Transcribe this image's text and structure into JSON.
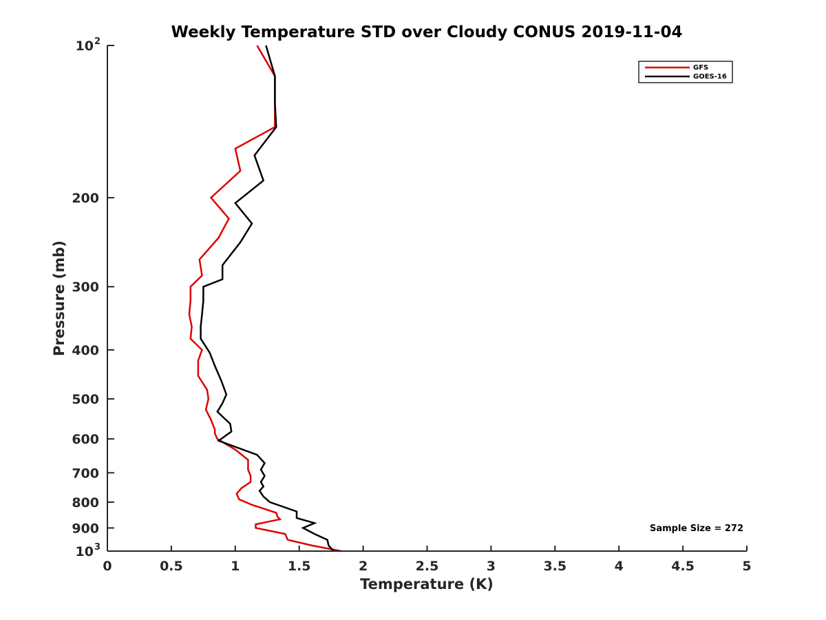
{
  "chart_data": {
    "type": "line",
    "title": "Weekly Temperature STD over Cloudy CONUS 2019-11-04",
    "xlabel": "Temperature (K)",
    "ylabel": "Pressure (mb)",
    "xlim": [
      0,
      5
    ],
    "ylim": [
      100,
      1000
    ],
    "y_scale": "log",
    "y_reversed": true,
    "grid": false,
    "legend_position": "top-right",
    "x_ticks": [
      0,
      0.5,
      1,
      1.5,
      2,
      2.5,
      3,
      3.5,
      4,
      4.5,
      5
    ],
    "x_tick_labels": [
      "0",
      "0.5",
      "1",
      "1.5",
      "2",
      "2.5",
      "3",
      "3.5",
      "4",
      "4.5",
      "5"
    ],
    "y_ticks": [
      {
        "value": 100,
        "base": "10",
        "exp": "2"
      },
      {
        "value": 200,
        "label": "200"
      },
      {
        "value": 300,
        "label": "300"
      },
      {
        "value": 400,
        "label": "400"
      },
      {
        "value": 500,
        "label": "500"
      },
      {
        "value": 600,
        "label": "600"
      },
      {
        "value": 700,
        "label": "700"
      },
      {
        "value": 800,
        "label": "800"
      },
      {
        "value": 900,
        "label": "900"
      },
      {
        "value": 1000,
        "base": "10",
        "exp": "3"
      }
    ],
    "annotation": "Sample Size = 272",
    "series": [
      {
        "name": "GFS",
        "color": "#dd0000",
        "points": [
          [
            1.17,
            100
          ],
          [
            1.31,
            115
          ],
          [
            1.31,
            130
          ],
          [
            1.31,
            145
          ],
          [
            1.0,
            160
          ],
          [
            1.04,
            177
          ],
          [
            0.81,
            200
          ],
          [
            0.95,
            220
          ],
          [
            0.87,
            240
          ],
          [
            0.72,
            265
          ],
          [
            0.74,
            285
          ],
          [
            0.65,
            300
          ],
          [
            0.65,
            320
          ],
          [
            0.64,
            340
          ],
          [
            0.66,
            360
          ],
          [
            0.65,
            380
          ],
          [
            0.74,
            400
          ],
          [
            0.71,
            420
          ],
          [
            0.71,
            450
          ],
          [
            0.78,
            480
          ],
          [
            0.79,
            500
          ],
          [
            0.77,
            525
          ],
          [
            0.81,
            550
          ],
          [
            0.84,
            575
          ],
          [
            0.84,
            585
          ],
          [
            0.86,
            600
          ],
          [
            1.0,
            630
          ],
          [
            1.1,
            660
          ],
          [
            1.1,
            690
          ],
          [
            1.12,
            710
          ],
          [
            1.12,
            730
          ],
          [
            1.05,
            750
          ],
          [
            1.01,
            770
          ],
          [
            1.03,
            790
          ],
          [
            1.13,
            810
          ],
          [
            1.32,
            840
          ],
          [
            1.33,
            855
          ],
          [
            1.35,
            865
          ],
          [
            1.16,
            885
          ],
          [
            1.16,
            900
          ],
          [
            1.39,
            925
          ],
          [
            1.41,
            950
          ],
          [
            1.6,
            975
          ],
          [
            1.83,
            1000
          ]
        ]
      },
      {
        "name": "GOES-16",
        "color": "#000000",
        "points": [
          [
            1.24,
            100
          ],
          [
            1.31,
            115
          ],
          [
            1.31,
            130
          ],
          [
            1.32,
            145
          ],
          [
            1.15,
            165
          ],
          [
            1.22,
            185
          ],
          [
            1.0,
            205
          ],
          [
            1.13,
            225
          ],
          [
            1.04,
            245
          ],
          [
            0.9,
            272
          ],
          [
            0.9,
            290
          ],
          [
            0.75,
            300
          ],
          [
            0.75,
            320
          ],
          [
            0.74,
            340
          ],
          [
            0.73,
            360
          ],
          [
            0.73,
            380
          ],
          [
            0.8,
            405
          ],
          [
            0.84,
            430
          ],
          [
            0.89,
            460
          ],
          [
            0.93,
            490
          ],
          [
            0.9,
            510
          ],
          [
            0.86,
            530
          ],
          [
            0.91,
            545
          ],
          [
            0.96,
            560
          ],
          [
            0.97,
            580
          ],
          [
            0.87,
            605
          ],
          [
            1.17,
            645
          ],
          [
            1.23,
            670
          ],
          [
            1.2,
            690
          ],
          [
            1.23,
            710
          ],
          [
            1.2,
            730
          ],
          [
            1.22,
            745
          ],
          [
            1.19,
            760
          ],
          [
            1.22,
            780
          ],
          [
            1.27,
            800
          ],
          [
            1.48,
            835
          ],
          [
            1.48,
            860
          ],
          [
            1.62,
            880
          ],
          [
            1.53,
            900
          ],
          [
            1.62,
            925
          ],
          [
            1.72,
            950
          ],
          [
            1.73,
            975
          ],
          [
            1.77,
            1000
          ]
        ]
      }
    ]
  }
}
